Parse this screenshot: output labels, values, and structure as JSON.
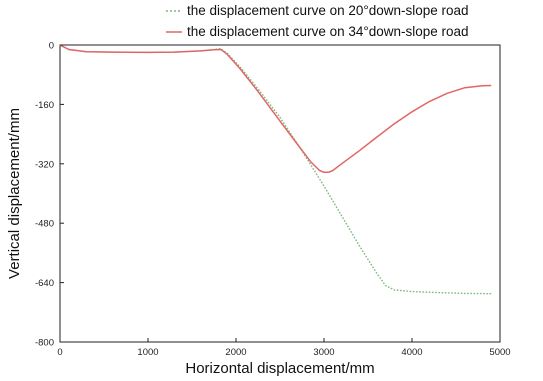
{
  "chart_data": {
    "type": "line",
    "xlabel": "Horizontal displacement/mm",
    "ylabel": "Vertical displacement/mm",
    "xlim": [
      0,
      5000
    ],
    "ylim": [
      -800,
      0
    ],
    "xticks": [
      0,
      1000,
      2000,
      3000,
      4000,
      5000
    ],
    "yticks": [
      0,
      -160,
      -320,
      -480,
      -640,
      -800
    ],
    "grid": false,
    "legend_position": "top-right",
    "series": [
      {
        "name": "the displacement curve on 20°down-slope road",
        "color": "#7db87d",
        "style": "dotted",
        "x": [
          0,
          100,
          300,
          600,
          1000,
          1300,
          1600,
          1750,
          1820,
          1900,
          2050,
          2250,
          2500,
          2750,
          3000,
          3200,
          3400,
          3600,
          3700,
          3800,
          4000,
          4300,
          4600,
          4900
        ],
        "y": [
          0,
          -12,
          -18,
          -19,
          -20,
          -19,
          -16,
          -12,
          -10,
          -22,
          -60,
          -118,
          -195,
          -285,
          -380,
          -460,
          -540,
          -615,
          -648,
          -660,
          -664,
          -667,
          -669,
          -670
        ]
      },
      {
        "name": "the displacement curve on 34°down-slope road",
        "color": "#e06666",
        "style": "solid",
        "x": [
          0,
          100,
          300,
          600,
          1000,
          1300,
          1600,
          1750,
          1830,
          1900,
          2050,
          2250,
          2500,
          2700,
          2850,
          2950,
          3000,
          3050,
          3100,
          3200,
          3400,
          3600,
          3800,
          4000,
          4200,
          4400,
          4600,
          4800,
          4900
        ],
        "y": [
          0,
          -12,
          -18,
          -19,
          -20,
          -19,
          -16,
          -13,
          -12,
          -25,
          -65,
          -125,
          -205,
          -268,
          -315,
          -338,
          -343,
          -343,
          -338,
          -320,
          -285,
          -248,
          -212,
          -180,
          -152,
          -130,
          -115,
          -110,
          -109
        ]
      }
    ]
  }
}
